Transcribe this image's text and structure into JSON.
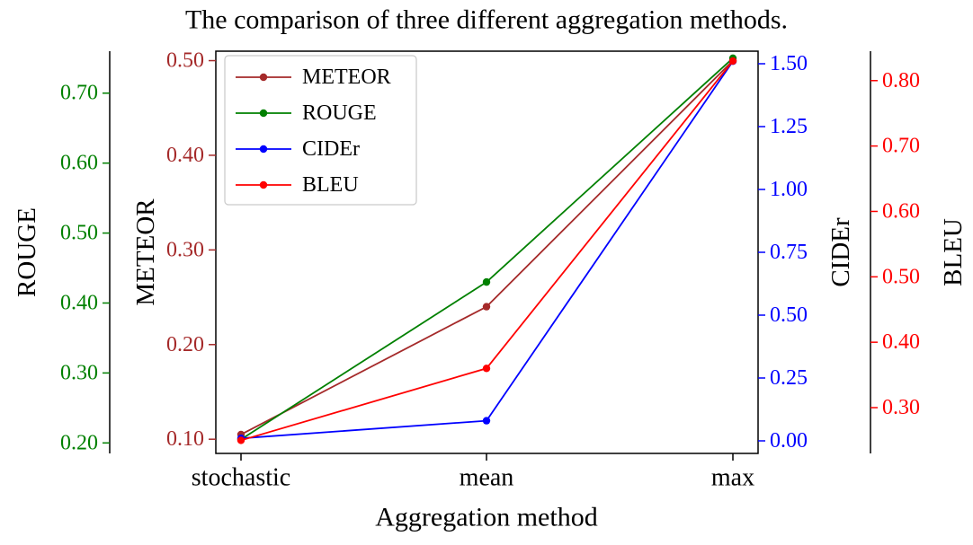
{
  "chart_data": {
    "type": "line",
    "title": "The comparison of three different aggregation methods.",
    "xlabel": "Aggregation method",
    "categories": [
      "stochastic",
      "mean",
      "max"
    ],
    "grid": false,
    "legend": {
      "position": "upper left",
      "entries": [
        "METEOR",
        "ROUGE",
        "CIDEr",
        "BLEU"
      ]
    },
    "axes": [
      {
        "name": "ROUGE",
        "side": "left-outer",
        "color": "#008000",
        "ticks": [
          0.2,
          0.3,
          0.4,
          0.5,
          0.6,
          0.7
        ],
        "ylim": [
          0.185,
          0.76
        ]
      },
      {
        "name": "METEOR",
        "side": "left-inner",
        "color": "#a52a2a",
        "ticks": [
          0.1,
          0.2,
          0.3,
          0.4,
          0.5
        ],
        "ylim": [
          0.085,
          0.51
        ]
      },
      {
        "name": "CIDEr",
        "side": "right-inner",
        "color": "#0000ff",
        "ticks": [
          0.0,
          0.25,
          0.5,
          0.75,
          1.0,
          1.25,
          1.5
        ],
        "ylim": [
          -0.05,
          1.55
        ]
      },
      {
        "name": "BLEU",
        "side": "right-outer",
        "color": "#ff0000",
        "ticks": [
          0.3,
          0.4,
          0.5,
          0.6,
          0.7,
          0.8
        ],
        "ylim": [
          0.23,
          0.845
        ]
      }
    ],
    "series": [
      {
        "name": "METEOR",
        "axis": "METEOR",
        "color": "#a52a2a",
        "values": [
          0.105,
          0.24,
          0.5
        ]
      },
      {
        "name": "ROUGE",
        "axis": "ROUGE",
        "color": "#008000",
        "values": [
          0.205,
          0.43,
          0.75
        ]
      },
      {
        "name": "CIDEr",
        "axis": "CIDEr",
        "color": "#0000ff",
        "values": [
          0.01,
          0.08,
          1.51
        ]
      },
      {
        "name": "BLEU",
        "axis": "BLEU",
        "color": "#ff0000",
        "values": [
          0.25,
          0.36,
          0.83
        ]
      }
    ]
  }
}
